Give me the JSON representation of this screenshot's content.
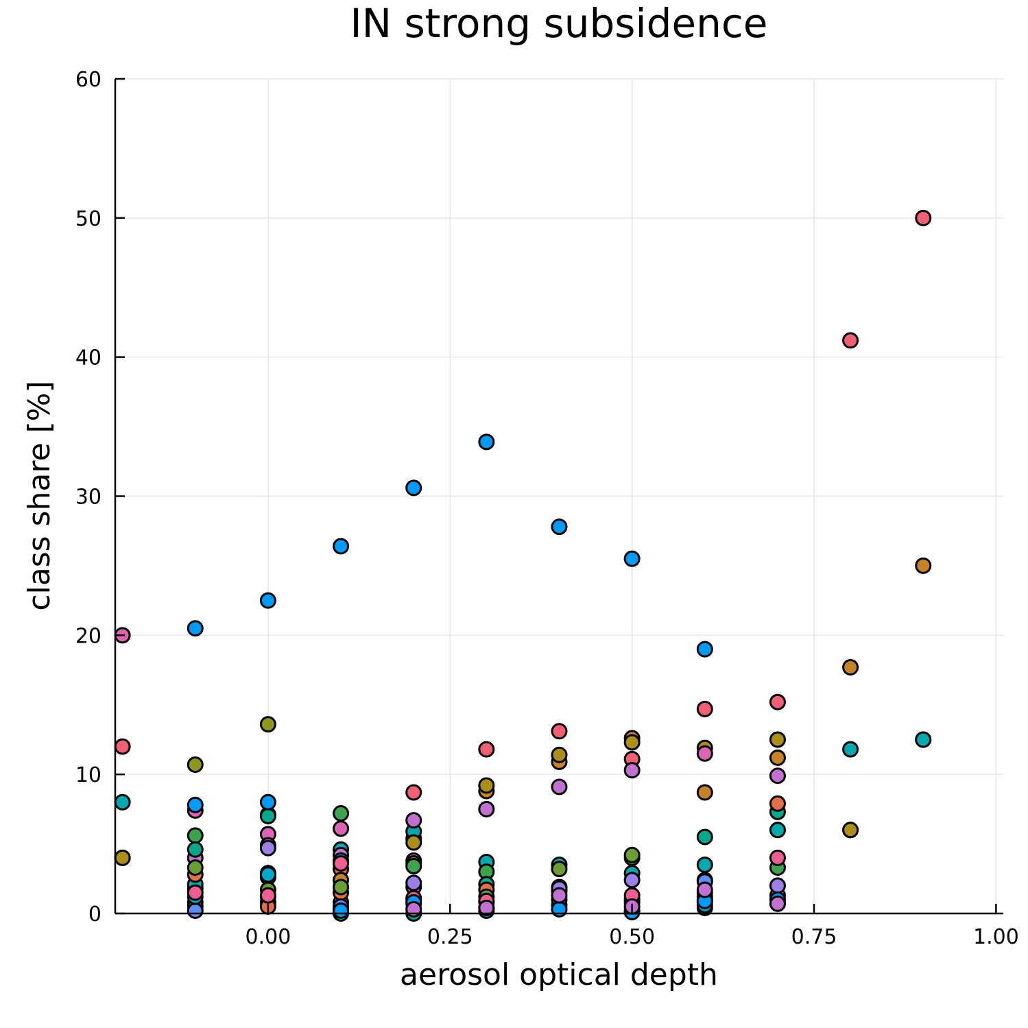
{
  "chart_data": {
    "type": "scatter",
    "title": "IN strong subsidence",
    "xlabel": "aerosol optical depth",
    "ylabel": "class share [%]",
    "xlim": [
      -0.21,
      1.01
    ],
    "ylim": [
      0,
      60
    ],
    "xticks": [
      0.0,
      0.25,
      0.5,
      0.75,
      1.0
    ],
    "xtick_labels": [
      "0.00",
      "0.25",
      "0.50",
      "0.75",
      "1.00"
    ],
    "yticks": [
      0,
      10,
      20,
      30,
      40,
      50,
      60
    ],
    "ytick_labels": [
      "0",
      "10",
      "20",
      "30",
      "40",
      "50",
      "60"
    ],
    "grid": true,
    "legend": "none",
    "palette": [
      "#009af9",
      "#e26f46",
      "#3da44d",
      "#c271d2",
      "#ac8e18",
      "#00a9ad",
      "#ed5e93",
      "#c68225",
      "#00a98d",
      "#8e971d",
      "#00a8cb",
      "#9b7fe9",
      "#618df6",
      "#f05f73",
      "#dd64b5",
      "#6b9e32"
    ],
    "series": [
      {
        "color": "#009af9",
        "x": [
          -0.1,
          0.0,
          0.1,
          0.2,
          0.3,
          0.4,
          0.5,
          0.6,
          0.8,
          0.9
        ],
        "y": [
          20.5,
          22.5,
          26.4,
          30.6,
          33.9,
          27.8,
          25.5,
          19.0,
          6.0,
          12.5
        ]
      },
      {
        "color": "#f05f73",
        "x": [
          -0.2,
          -0.1,
          0.0,
          0.1,
          0.2,
          0.3,
          0.4,
          0.5,
          0.6,
          0.7,
          0.8,
          0.9
        ],
        "y": [
          12.0,
          1.8,
          0.8,
          3.2,
          8.7,
          11.8,
          13.1,
          11.1,
          14.7,
          15.2,
          41.2,
          50.0
        ]
      },
      {
        "color": "#c68225",
        "x": [
          -0.2,
          -0.1,
          0.0,
          0.1,
          0.2,
          0.3,
          0.4,
          0.5,
          0.6,
          0.7,
          0.8,
          0.9
        ],
        "y": [
          4.0,
          0.8,
          1.2,
          2.4,
          5.4,
          8.8,
          10.9,
          12.6,
          8.7,
          11.2,
          17.7,
          25.0
        ]
      },
      {
        "color": "#00a9ad",
        "x": [
          -0.2,
          -0.1,
          0.0,
          0.1,
          0.2,
          0.3,
          0.4,
          0.5,
          0.6,
          0.7,
          0.8,
          0.9
        ],
        "y": [
          8.0,
          2.1,
          2.6,
          4.6,
          5.9,
          3.7,
          3.5,
          2.9,
          3.5,
          6.0,
          11.8,
          12.5
        ]
      },
      {
        "color": "#ac8e18",
        "x": [
          -0.2,
          -0.1,
          0.0,
          0.1,
          0.2,
          0.3,
          0.4,
          0.5,
          0.6,
          0.7,
          0.8
        ],
        "y": [
          4.0,
          0.5,
          2.9,
          0.8,
          5.1,
          9.2,
          11.4,
          12.3,
          11.9,
          12.5,
          6.0
        ]
      },
      {
        "color": "#dd64b5",
        "x": [
          -0.2,
          -0.1,
          0.0,
          0.1,
          0.2,
          0.6,
          0.7
        ],
        "y": [
          20.0,
          7.4,
          5.7,
          6.1,
          3.8,
          11.5,
          1.3
        ]
      },
      {
        "color": "#c271d2",
        "x": [
          -0.1,
          0.0,
          0.1,
          0.2,
          0.3,
          0.4,
          0.5,
          0.6,
          0.7
        ],
        "y": [
          4.0,
          4.9,
          4.2,
          6.7,
          7.5,
          9.1,
          10.3,
          2.4,
          9.9
        ]
      },
      {
        "color": "#8e971d",
        "x": [
          -0.1,
          0.0,
          0.1,
          0.2,
          0.6
        ],
        "y": [
          10.7,
          13.6,
          0.3,
          3.6,
          1.5
        ]
      },
      {
        "color": "#3da44d",
        "x": [
          -0.1,
          0.0,
          0.1,
          0.2,
          0.3,
          0.4,
          0.5,
          0.6,
          0.7
        ],
        "y": [
          5.6,
          7.1,
          7.2,
          3.4,
          3.0,
          1.6,
          4.0,
          0.8,
          3.3
        ]
      },
      {
        "color": "#00a98d",
        "x": [
          -0.1,
          0.0,
          0.1,
          0.2,
          0.3,
          0.6,
          0.7
        ],
        "y": [
          4.6,
          7.0,
          0.0,
          0.0,
          2.1,
          5.5,
          7.3
        ]
      },
      {
        "color": "#e26f46",
        "x": [
          -0.1,
          0.0,
          0.1,
          0.2,
          0.3,
          0.4,
          0.5,
          0.6,
          0.7
        ],
        "y": [
          2.8,
          0.5,
          1.5,
          1.9,
          1.7,
          0.6,
          1.0,
          0.4,
          7.9
        ]
      },
      {
        "color": "#618df6",
        "x": [
          -0.1,
          0.1,
          0.3,
          0.4,
          0.5,
          0.6
        ],
        "y": [
          0.2,
          0.5,
          0.8,
          1.9,
          0.2,
          2.3
        ]
      },
      {
        "color": "#9b7fe9",
        "x": [
          0.0,
          0.2,
          0.4,
          0.5,
          0.7
        ],
        "y": [
          4.7,
          2.2,
          1.8,
          2.4,
          2.0
        ]
      },
      {
        "color": "#6b9e32",
        "x": [
          -0.1,
          0.0,
          0.1,
          0.2,
          0.3,
          0.4,
          0.5,
          0.6
        ],
        "y": [
          3.3,
          1.7,
          1.9,
          1.0,
          1.2,
          3.2,
          4.2,
          1.0
        ]
      },
      {
        "color": "#00a8cb",
        "x": [
          -0.1,
          0.0,
          0.1,
          0.2,
          0.3,
          0.4,
          0.5,
          0.6,
          0.7
        ],
        "y": [
          1.2,
          2.8,
          3.8,
          0.7,
          0.4,
          1.0,
          0.8,
          0.6,
          0.7
        ]
      },
      {
        "color": "#ed5e93",
        "x": [
          -0.1,
          0.0,
          0.1,
          0.2,
          0.3,
          0.5,
          0.6,
          0.7
        ],
        "y": [
          1.5,
          1.3,
          3.6,
          1.1,
          0.9,
          1.3,
          1.2,
          4.0
        ]
      },
      {
        "color": "#009af9",
        "x": [
          -0.1,
          0.0,
          0.1,
          0.2,
          0.3,
          0.4,
          0.5,
          0.6,
          0.7
        ],
        "y": [
          7.8,
          8.0,
          0.2,
          0.8,
          0.2,
          0.3,
          0.1,
          0.9,
          1.0
        ]
      },
      {
        "color": "#c271d2",
        "x": [
          0.2,
          0.3,
          0.4,
          0.5,
          0.6,
          0.7
        ],
        "y": [
          0.3,
          0.4,
          1.3,
          0.5,
          1.7,
          0.7
        ]
      }
    ]
  }
}
